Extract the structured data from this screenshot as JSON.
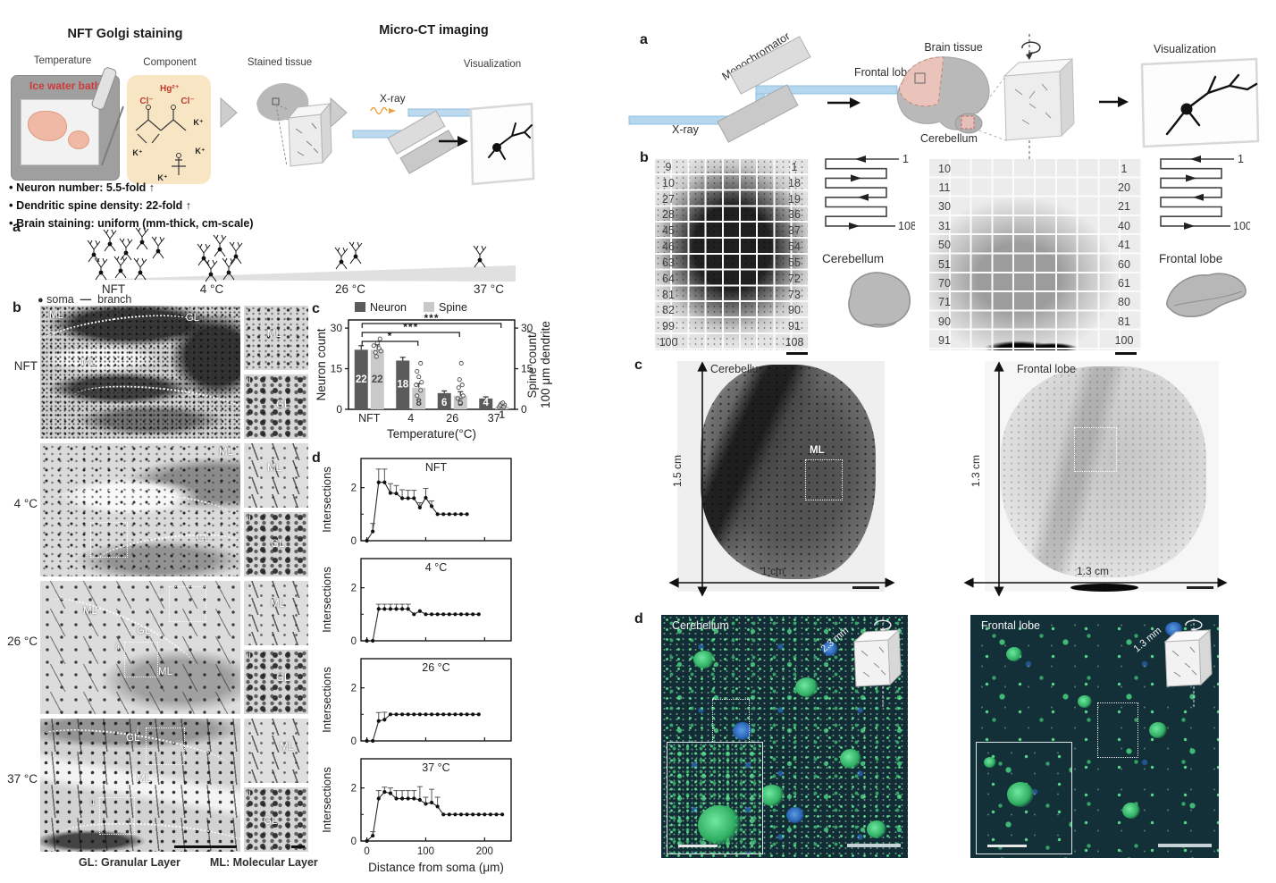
{
  "figure_left": {
    "title_golgi": "NFT Golgi staining",
    "title_microct": "Micro-CT imaging",
    "workflow": {
      "temperature_label": "Temperature",
      "ice_water_bath": "Ice water bath",
      "component_label": "Component",
      "stained_tissue_label": "Stained tissue",
      "visualization_label": "Visualization",
      "xray_label": "X-ray",
      "ions": {
        "hg": "Hg²⁺",
        "cl_a": "Cl⁻",
        "cl_b": "Cl⁻",
        "k_a": "K⁺",
        "k_b": "K⁺",
        "k_c": "K⁺",
        "k_d": "K⁺"
      }
    },
    "highlights": [
      "Neuron number: 5.5-fold ↑",
      "Dendritic spine density: 22-fold ↑",
      "Brain staining: uniform (mm-thick, cm-scale)"
    ],
    "panel_a": {
      "label": "a",
      "conditions": [
        "NFT",
        "4 °C",
        "26 °C",
        "37 °C"
      ],
      "neuron_counts": [
        8,
        5,
        2,
        1
      ],
      "legend": {
        "soma": "soma",
        "branch": "branch"
      }
    },
    "panel_b": {
      "label": "b",
      "rows": [
        {
          "temp": "NFT",
          "ml": "ML",
          "gl": "GL",
          "inset_i": "i",
          "inset_ii": "ii"
        },
        {
          "temp": "4 °C",
          "ml": "ML",
          "gl": "GL",
          "inset_i": "i",
          "inset_ii": "ii"
        },
        {
          "temp": "26 °C",
          "ml": "ML",
          "gl": "GL",
          "inset_i": "i",
          "inset_ii": "ii"
        },
        {
          "temp": "37 °C",
          "ml": "ML",
          "gl": "GL",
          "inset_i": "i",
          "inset_ii": "ii"
        }
      ],
      "caption_gl": "GL: Granular Layer",
      "caption_ml": "ML: Molecular Layer"
    },
    "panel_c_label": "c",
    "panel_d_label": "d"
  },
  "figure_right": {
    "panel_a": {
      "label": "a",
      "monochromator": "Monochromator",
      "xray": "X-ray",
      "brain_tissue": "Brain tissue",
      "frontal_lobe": "Frontal lobe",
      "cerebellum": "Cerebellum",
      "visualization": "Visualization"
    },
    "panel_b": {
      "label": "b",
      "grids": [
        {
          "name": "Cerebellum",
          "rows": 12,
          "cols": 9,
          "left_numbers": [
            "9",
            "10",
            "27",
            "28",
            "45",
            "46",
            "63",
            "64",
            "81",
            "82",
            "99",
            "100"
          ],
          "right_numbers": [
            "1",
            "18",
            "19",
            "36",
            "37",
            "54",
            "55",
            "72",
            "73",
            "90",
            "91",
            "108"
          ],
          "scan_start": "1",
          "scan_end": "108"
        },
        {
          "name": "Frontal lobe",
          "rows": 10,
          "cols": 10,
          "left_numbers": [
            "10",
            "11",
            "30",
            "31",
            "50",
            "51",
            "70",
            "71",
            "90",
            "91"
          ],
          "right_numbers": [
            "1",
            "20",
            "21",
            "40",
            "41",
            "60",
            "61",
            "80",
            "81",
            "100"
          ],
          "scan_start": "1",
          "scan_end": "100"
        }
      ]
    },
    "panel_c": {
      "label": "c",
      "images": [
        {
          "name": "Cerebellum",
          "height_label": "1.5 cm",
          "width_label": "1 cm",
          "region_label": "ML"
        },
        {
          "name": "Frontal lobe",
          "height_label": "1.3 cm",
          "width_label": "1.3 cm",
          "region_label": ""
        }
      ]
    },
    "panel_d": {
      "label": "d",
      "images": [
        {
          "name": "Cerebellum",
          "depth_label": "2.3 mm"
        },
        {
          "name": "Frontal lobe",
          "depth_label": "1.3 mm"
        }
      ]
    }
  },
  "chart_data": [
    {
      "id": "neuron-spine-bar",
      "type": "bar",
      "categories": [
        "NFT",
        "4",
        "26",
        "37"
      ],
      "series": [
        {
          "name": "Neuron",
          "color": "#5b5b5b",
          "values": [
            22,
            18,
            6,
            4
          ],
          "errors": [
            1.5,
            1.2,
            0.8,
            0.6
          ]
        },
        {
          "name": "Spine",
          "color": "#c9c9c9",
          "values": [
            22,
            8,
            5,
            1
          ],
          "errors": [
            1.8,
            1.5,
            1.5,
            0.5
          ]
        }
      ],
      "xlabel": "Temperature(°C)",
      "ylabel_left": "Neuron count",
      "ylabel_right_line1": "Spine count/",
      "ylabel_right_line2": "100 μm dendrite",
      "yticks": [
        0,
        15,
        30
      ],
      "ylim": [
        0,
        33
      ],
      "legend_position": "top",
      "grid": false,
      "significance": [
        {
          "from_group": 0,
          "to_group": 1,
          "label": "*"
        },
        {
          "from_group": 0,
          "to_group": 2,
          "label": "***"
        },
        {
          "from_group": 0,
          "to_group": 3,
          "label": "***"
        }
      ]
    },
    {
      "id": "sholl-plots",
      "type": "line",
      "xlabel": "Distance from soma (μm)",
      "ylabel": "Intersections",
      "xticks": [
        0,
        100,
        200
      ],
      "yticks": [
        0,
        2
      ],
      "xlim": [
        -10,
        245
      ],
      "ylim": [
        0,
        3.1
      ],
      "plots": [
        {
          "title": "NFT",
          "x": [
            0,
            10,
            20,
            30,
            40,
            50,
            60,
            70,
            80,
            90,
            100,
            110,
            120,
            130,
            140,
            150,
            160,
            170
          ],
          "y": [
            0,
            0.35,
            2.2,
            2.2,
            1.8,
            1.78,
            1.6,
            1.6,
            1.6,
            1.25,
            1.62,
            1.3,
            1,
            1,
            1,
            1,
            1,
            1
          ],
          "err": [
            0,
            0.3,
            0.5,
            0.5,
            0.35,
            0.3,
            0.32,
            0.3,
            0.3,
            0.18,
            0.35,
            0.2,
            0,
            0,
            0,
            0,
            0,
            0
          ]
        },
        {
          "title": "4 °C",
          "x": [
            0,
            10,
            20,
            30,
            40,
            50,
            60,
            70,
            80,
            90,
            100,
            110,
            120,
            130,
            140,
            150,
            160,
            170,
            180,
            190
          ],
          "y": [
            0,
            0,
            1.2,
            1.2,
            1.2,
            1.2,
            1.2,
            1.2,
            1,
            1.12,
            1,
            1,
            1,
            1,
            1,
            1,
            1,
            1,
            1,
            1
          ],
          "err": [
            0,
            0,
            0.18,
            0.18,
            0.18,
            0.18,
            0.18,
            0.18,
            0,
            0,
            0,
            0,
            0,
            0,
            0,
            0,
            0,
            0,
            0,
            0
          ]
        },
        {
          "title": "26 °C",
          "x": [
            0,
            10,
            20,
            30,
            40,
            50,
            60,
            70,
            80,
            90,
            100,
            110,
            120,
            130,
            140,
            150,
            160,
            170,
            180,
            190
          ],
          "y": [
            0,
            0,
            0.75,
            0.8,
            1,
            1,
            1,
            1,
            1,
            1,
            1,
            1,
            1,
            1,
            1,
            1,
            1,
            1,
            1,
            1
          ],
          "err": [
            0,
            0,
            0.32,
            0.28,
            0,
            0,
            0,
            0,
            0,
            0,
            0,
            0,
            0,
            0,
            0,
            0,
            0,
            0,
            0,
            0
          ]
        },
        {
          "title": "37 °C",
          "x": [
            0,
            10,
            20,
            30,
            40,
            50,
            60,
            70,
            80,
            90,
            100,
            110,
            120,
            130,
            140,
            150,
            160,
            170,
            180,
            190,
            200,
            210,
            220,
            230
          ],
          "y": [
            0,
            0.2,
            1.6,
            1.85,
            1.8,
            1.6,
            1.6,
            1.6,
            1.6,
            1.55,
            1.4,
            1.45,
            1.3,
            1,
            1,
            1,
            1,
            1,
            1,
            1,
            1,
            1,
            1,
            1
          ],
          "err": [
            0,
            0.15,
            0.3,
            0.18,
            0.2,
            0.3,
            0.3,
            0.3,
            0.3,
            0.5,
            0.25,
            0.5,
            0.35,
            0,
            0,
            0,
            0,
            0,
            0,
            0,
            0,
            0,
            0,
            0
          ]
        }
      ]
    }
  ]
}
